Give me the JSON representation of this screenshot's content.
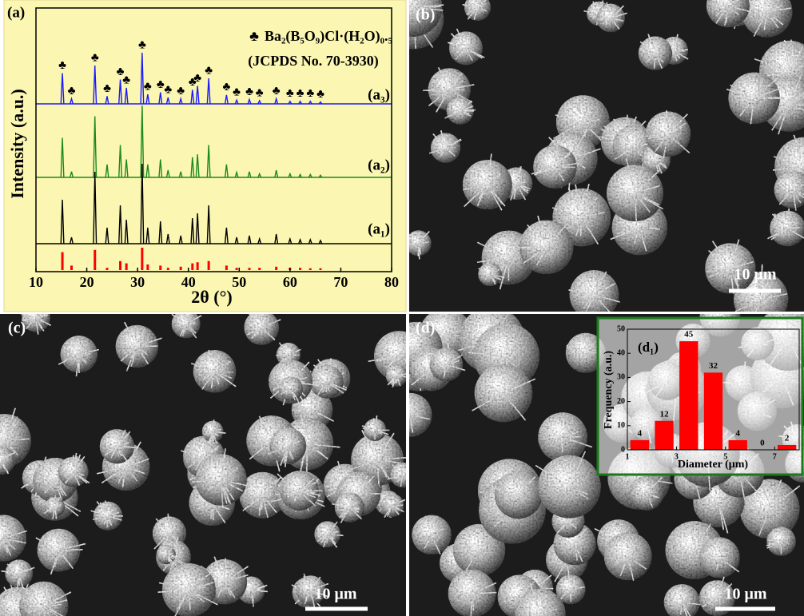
{
  "chart_data": [
    {
      "type": "line",
      "label": "(a)",
      "xlabel": "2θ (°)",
      "ylabel": "Intensity (a.u.)",
      "xlim": [
        10,
        80
      ],
      "xticks": [
        10,
        20,
        30,
        40,
        50,
        60,
        70,
        80
      ],
      "ylim": [
        0,
        100
      ],
      "legend": {
        "symbol": "♣",
        "text": "Ba₂(B₅O₉)Cl·(H₂O)₀.₅",
        "note": "(JCPDS No. 70-3930)"
      },
      "series": [
        {
          "name": "(a₃)",
          "color": "#1a1aff",
          "x": [
            15.2,
            17.0,
            21.6,
            24.0,
            26.6,
            27.8,
            30.9,
            32.0,
            34.5,
            36.0,
            38.5,
            40.8,
            41.8,
            44.0,
            47.5,
            49.5,
            52.0,
            54.0,
            57.3,
            60.0,
            62.0,
            64.0,
            66.0
          ],
          "values": [
            48,
            8,
            60,
            12,
            38,
            25,
            80,
            15,
            18,
            10,
            8,
            22,
            28,
            40,
            14,
            6,
            7,
            5,
            8,
            4,
            4,
            4,
            3
          ]
        },
        {
          "name": "(a₂)",
          "color": "#1a8a1a",
          "x": [
            15.2,
            17.0,
            21.6,
            24.0,
            26.6,
            27.8,
            30.9,
            32.0,
            34.5,
            36.0,
            38.5,
            40.8,
            41.8,
            44.0,
            47.5,
            49.5,
            52.0,
            54.0,
            57.3,
            60.0,
            62.0,
            64.0,
            66.0
          ],
          "values": [
            55,
            8,
            85,
            18,
            45,
            25,
            100,
            18,
            25,
            10,
            8,
            28,
            32,
            45,
            18,
            7,
            8,
            5,
            10,
            5,
            4,
            4,
            3
          ]
        },
        {
          "name": "(a₁)",
          "color": "#000000",
          "x": [
            15.2,
            17.0,
            21.6,
            24.0,
            26.6,
            27.8,
            30.9,
            32.0,
            34.5,
            36.0,
            38.5,
            40.8,
            41.8,
            44.0,
            47.5,
            49.5,
            52.0,
            54.0,
            57.3,
            60.0,
            62.0,
            64.0,
            66.0
          ],
          "values": [
            55,
            8,
            90,
            20,
            48,
            30,
            100,
            20,
            28,
            12,
            10,
            32,
            38,
            48,
            20,
            8,
            10,
            6,
            12,
            6,
            5,
            5,
            4
          ]
        },
        {
          "color": "#ff0000",
          "x": [
            15.2,
            17.0,
            21.6,
            24.0,
            26.6,
            27.8,
            30.9,
            32.0,
            34.5,
            36.0,
            38.5,
            40.8,
            41.8,
            44.0,
            47.5,
            49.5,
            52.0,
            54.0,
            57.3,
            60.0,
            62.0,
            64.0,
            66.0
          ],
          "values": [
            80,
            20,
            90,
            10,
            40,
            30,
            100,
            25,
            20,
            10,
            15,
            30,
            35,
            40,
            20,
            10,
            10,
            10,
            15,
            10,
            10,
            8,
            8
          ]
        }
      ]
    },
    {
      "type": "histogram",
      "label": "(d₁)",
      "xlabel": "Diameter (μm)",
      "ylabel": "Frequency (a.u.)",
      "bins": [
        1,
        2,
        3,
        4,
        5,
        6,
        7,
        8
      ],
      "values": [
        4,
        12,
        45,
        32,
        4,
        0,
        2
      ],
      "color": "#ff0000",
      "xlim": [
        1,
        8
      ],
      "xticks": [
        1,
        3,
        5,
        7
      ],
      "ylim": [
        0,
        50
      ],
      "yticks": [
        0,
        10,
        20,
        30,
        40,
        50
      ]
    }
  ],
  "panels": {
    "b": {
      "label": "(b)",
      "scale_bar": "10 μm"
    },
    "c": {
      "label": "(c)",
      "scale_bar": "10 μm"
    },
    "d": {
      "label": "(d)",
      "scale_bar": "10 μm"
    }
  }
}
